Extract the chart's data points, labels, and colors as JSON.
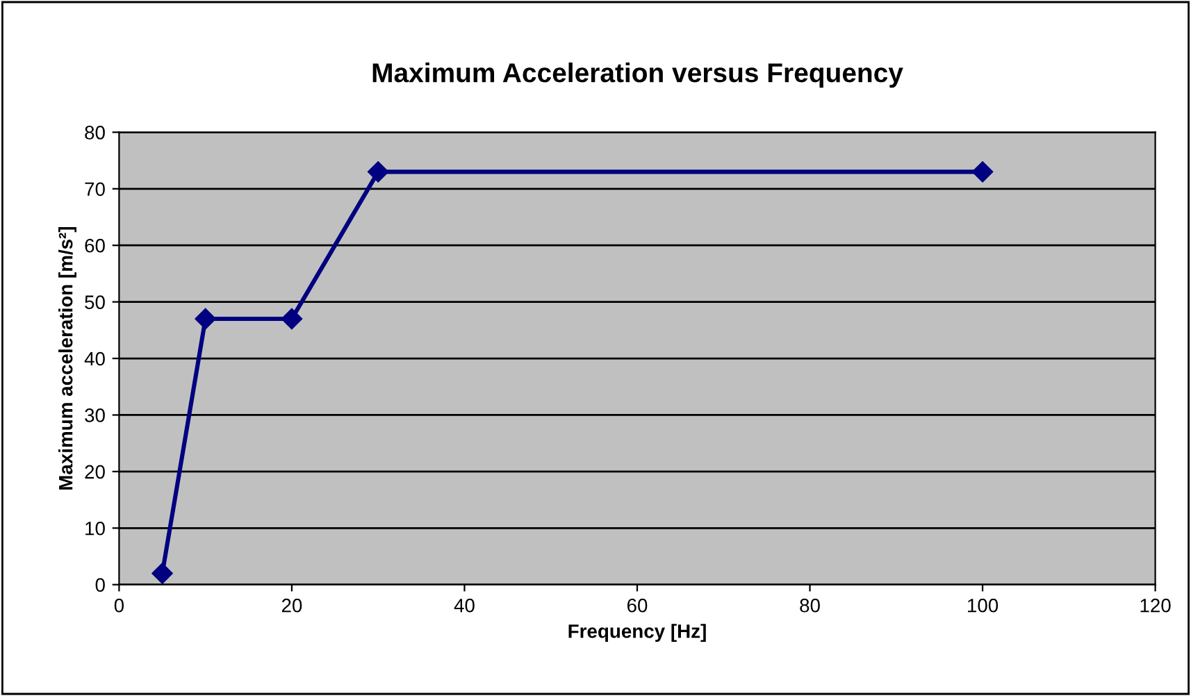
{
  "chart_data": {
    "type": "line",
    "title": "Maximum Acceleration versus Frequency",
    "xlabel": "Frequency [Hz]",
    "ylabel": "Maximum acceleration [m/s²]",
    "x": [
      5,
      10,
      20,
      30,
      100
    ],
    "series": [
      {
        "color": "#000080",
        "values": [
          2,
          47,
          47,
          73,
          73
        ]
      }
    ],
    "xlim": [
      0,
      120
    ],
    "xticks": [
      0,
      20,
      40,
      60,
      80,
      100,
      120
    ],
    "ylim": [
      0,
      80
    ],
    "yticks": [
      0,
      10,
      20,
      30,
      40,
      50,
      60,
      70,
      80
    ],
    "grid": "y",
    "marker": "diamond",
    "line_style": "solid"
  }
}
